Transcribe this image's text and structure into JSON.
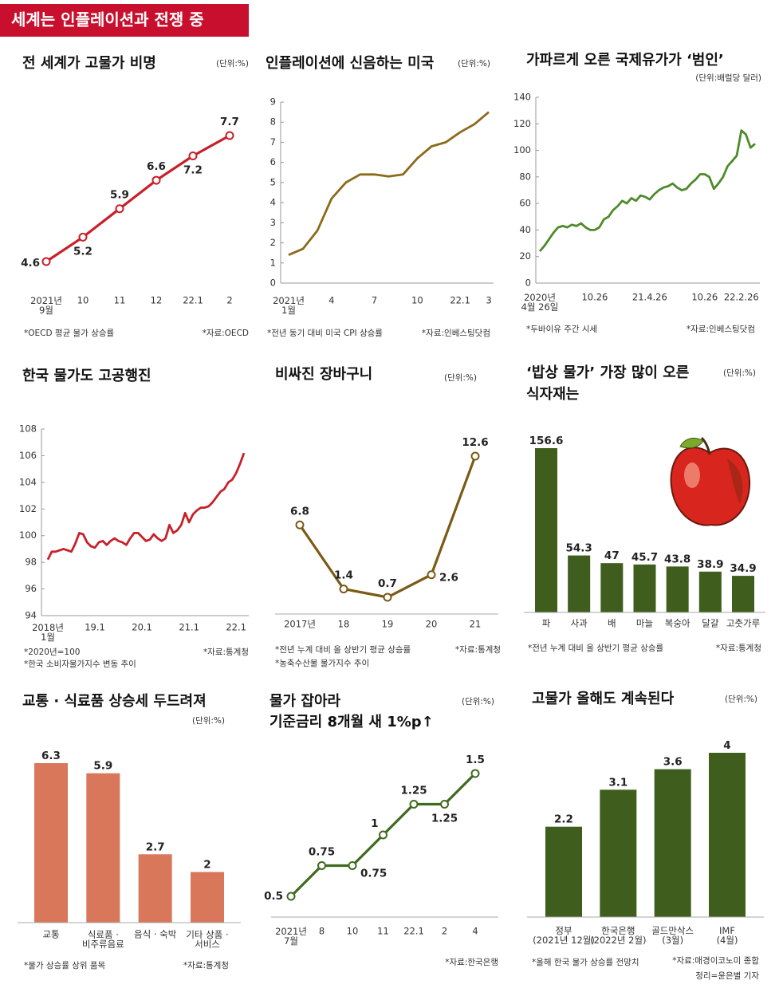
{
  "header": {
    "title": "세계는 인플레이션과 전쟁 중"
  },
  "credit": "정리=윤은별 기자",
  "chart_data": [
    {
      "type": "line",
      "title": "전 세계가 고물가 비명",
      "unit": "(단위:%)",
      "markers": true,
      "color": "#c8202a",
      "categories": [
        "2021년\n9월",
        "10",
        "11",
        "12",
        "22.1",
        "2"
      ],
      "values": [
        4.6,
        5.2,
        5.9,
        6.6,
        7.2,
        7.7
      ],
      "notes": [
        "*OECD 평균 물가 상승률"
      ],
      "source": "*자료:OECD"
    },
    {
      "type": "line",
      "title": "인플레이션에 신음하는 미국",
      "unit": "(단위:%)",
      "color": "#8b6a1a",
      "categories": [
        "2021년\n1월",
        null,
        null,
        "4",
        null,
        null,
        "7",
        null,
        null,
        "10",
        null,
        null,
        "22.1",
        null,
        "3"
      ],
      "values": [
        1.4,
        1.7,
        2.6,
        4.2,
        5.0,
        5.4,
        5.4,
        5.3,
        5.4,
        6.2,
        6.8,
        7.0,
        7.5,
        7.9,
        8.5
      ],
      "ylim": [
        0,
        9
      ],
      "yticks": [
        0,
        1,
        2,
        3,
        4,
        5,
        6,
        7,
        8,
        9
      ],
      "notes": [
        "*전년 동기 대비 미국 CPI 상승률"
      ],
      "source": "*자료:인베스팅닷컴"
    },
    {
      "type": "line",
      "title": "가파르게 오른 국제유가가 ‘범인’",
      "unit": "(단위:배럴당 달러)",
      "color": "#4e8a2a",
      "categories": [
        "2020년\n4월 26일",
        null,
        null,
        null,
        null,
        null,
        null,
        null,
        null,
        null,
        null,
        null,
        "10.26",
        null,
        null,
        null,
        null,
        null,
        null,
        null,
        null,
        null,
        null,
        null,
        "21.4.26",
        null,
        null,
        null,
        null,
        null,
        null,
        null,
        null,
        null,
        null,
        null,
        "10.26",
        null,
        null,
        null,
        null,
        null,
        null,
        null,
        "22.2.26",
        null,
        null,
        null
      ],
      "values": [
        24,
        28,
        33,
        38,
        42,
        43,
        42,
        44,
        43,
        45,
        42,
        40,
        40,
        42,
        48,
        50,
        55,
        58,
        62,
        60,
        64,
        62,
        66,
        65,
        63,
        67,
        70,
        72,
        73,
        75,
        72,
        70,
        71,
        75,
        78,
        82,
        82,
        80,
        71,
        75,
        80,
        88,
        92,
        96,
        115,
        112,
        102,
        105
      ],
      "ylim": [
        0,
        140
      ],
      "yticks": [
        0,
        20,
        40,
        60,
        80,
        100,
        120,
        140
      ],
      "notes": [
        "*두바이유 주간 시세"
      ],
      "source": "*자료:인베스팅닷컴"
    },
    {
      "type": "line",
      "title": "한국 물가도 고공행진",
      "color": "#c8202a",
      "categories": [
        "2018년\n1월",
        null,
        null,
        null,
        null,
        null,
        null,
        null,
        null,
        null,
        null,
        null,
        "19.1",
        null,
        null,
        null,
        null,
        null,
        null,
        null,
        null,
        null,
        null,
        null,
        "20.1",
        null,
        null,
        null,
        null,
        null,
        null,
        null,
        null,
        null,
        null,
        null,
        "21.1",
        null,
        null,
        null,
        null,
        null,
        null,
        null,
        null,
        null,
        null,
        null,
        "22.1",
        null,
        null
      ],
      "values": [
        98.2,
        98.8,
        98.8,
        98.9,
        99.0,
        98.9,
        98.8,
        99.4,
        100.2,
        100.1,
        99.5,
        99.2,
        99.1,
        99.5,
        99.6,
        99.3,
        99.6,
        99.8,
        99.6,
        99.5,
        99.3,
        99.8,
        100.2,
        100.2,
        99.9,
        99.6,
        99.7,
        100.1,
        99.8,
        99.6,
        99.8,
        100.8,
        100.2,
        100.4,
        100.8,
        101.7,
        101.0,
        101.6,
        101.9,
        102.1,
        102.1,
        102.2,
        102.5,
        102.9,
        103.3,
        103.5,
        104.0,
        104.2,
        104.7,
        105.4,
        106.2
      ],
      "ylim": [
        94,
        108
      ],
      "yticks": [
        94,
        96,
        98,
        100,
        102,
        104,
        106,
        108
      ],
      "notes": [
        "*2020년=100",
        "*한국 소비자물가지수 변동 추이"
      ],
      "source": "*자료:통계청"
    },
    {
      "type": "line",
      "title": "비싸진 장바구니",
      "unit": "(단위:%)",
      "markers": true,
      "color": "#7a5a14",
      "categories": [
        "2017년",
        "18",
        "19",
        "20",
        "21"
      ],
      "values": [
        6.8,
        1.4,
        0.7,
        2.6,
        12.6
      ],
      "notes": [
        "*전년 누계 대비 올 상반기 평균 상승률",
        "*농축수산물 물가지수 추이"
      ],
      "source": "*자료:통계청"
    },
    {
      "type": "bar",
      "title": "‘밥상 물가’ 가장 많이 오른\n식자재는",
      "unit": "(단위:%)",
      "color": "#3f5e1e",
      "categories": [
        "파",
        "사과",
        "배",
        "마늘",
        "복숭아",
        "달걀",
        "고춧가루"
      ],
      "values": [
        156.6,
        54.3,
        47,
        45.7,
        43.8,
        38.9,
        34.9
      ],
      "notes": [
        "*전년 누계 대비 올 상반기 평균 상승률"
      ],
      "source": "*자료:통계청"
    },
    {
      "type": "bar",
      "title": "교통 · 식료품 상승세 두드려져",
      "unit": "(단위:%)",
      "color": "#d9775a",
      "categories": [
        "교통",
        "식료품 ·\n비주류음료",
        "음식 · 숙박",
        "기타 상품 ·\n서비스"
      ],
      "values": [
        6.3,
        5.9,
        2.7,
        2
      ],
      "notes": [
        "*물가 상승률 상위 품목"
      ],
      "source": "*자료:통계청"
    },
    {
      "type": "line",
      "title": "물가 잡아라\n기준금리 8개월 새 1%p↑",
      "unit": "(단위:%)",
      "markers": true,
      "color": "#3f6a1e",
      "categories": [
        "2021년\n7월",
        "8",
        "10",
        "11",
        "22.1",
        "2",
        "4"
      ],
      "values": [
        0.5,
        0.75,
        0.75,
        1,
        1.25,
        1.25,
        1.5
      ],
      "notes": [],
      "source": "*자료:한국은행"
    },
    {
      "type": "bar",
      "title": "고물가 올해도 계속된다",
      "unit": "(단위:%)",
      "color": "#3f5e1e",
      "categories": [
        "정부\n(2021년 12월)",
        "한국은행\n(2022년 2월)",
        "골드만삭스\n(3월)",
        "IMF\n(4월)"
      ],
      "values": [
        2.2,
        3.1,
        3.6,
        4
      ],
      "notes": [
        "*올해 한국 물가 상승률 전망치"
      ],
      "source": "*자료:매경이코노미 종합"
    }
  ]
}
